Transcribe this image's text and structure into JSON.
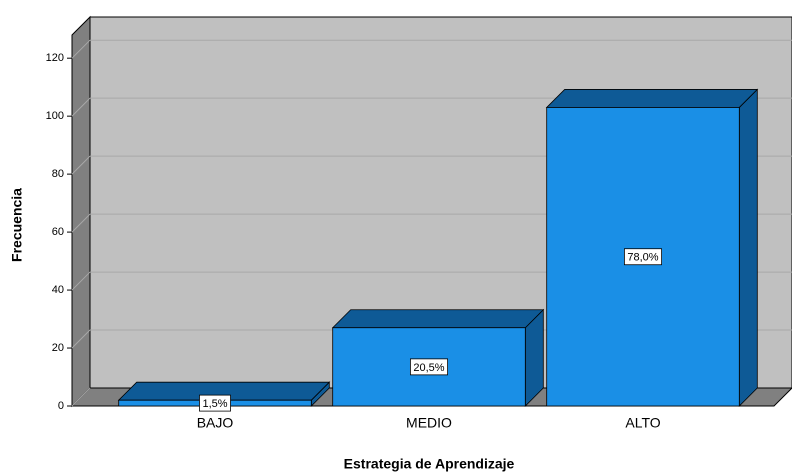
{
  "chart_data": {
    "type": "bar3d",
    "x_label": "Estrategia de Aprendizaje",
    "y_label": "Frecuencia",
    "categories": [
      "BAJO",
      "MEDIO",
      "ALTO"
    ],
    "values": [
      2,
      27,
      103
    ],
    "percentages": [
      1.5,
      20.5,
      78.0
    ],
    "percentage_labels": [
      "1,5%",
      "20,5%",
      "78,0%"
    ],
    "color": "#1a8fe6",
    "shade_color": "#0e5a96",
    "ylim": [
      0,
      128
    ],
    "yticks": [
      0,
      20,
      40,
      60,
      80,
      100,
      120
    ],
    "grid": true
  }
}
